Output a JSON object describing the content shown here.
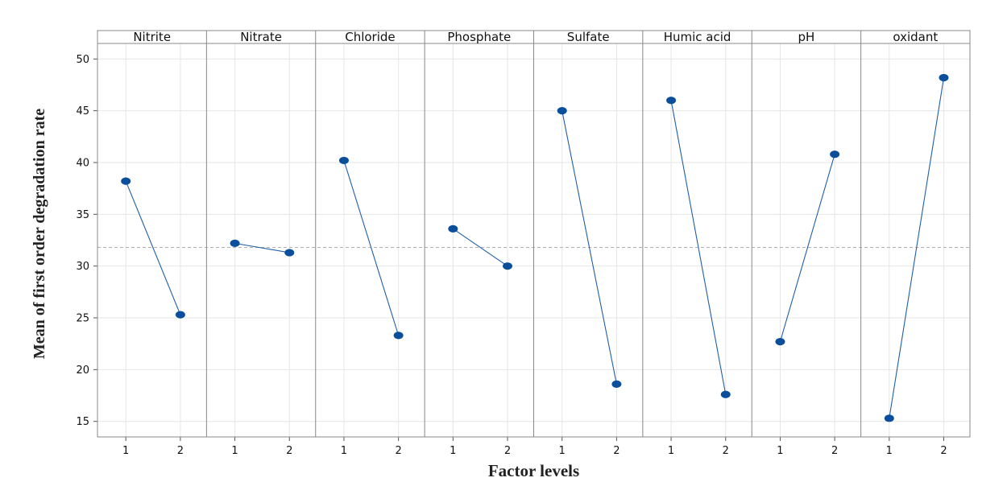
{
  "chart_data": {
    "type": "line",
    "title": "",
    "xlabel": "Factor levels",
    "ylabel": "Mean of first order degradation rate",
    "ylim": [
      13.5,
      51.5
    ],
    "y_ticks": [
      15,
      20,
      25,
      30,
      35,
      40,
      45,
      50
    ],
    "x_tick_labels": [
      "1",
      "2"
    ],
    "reference_line": 31.8,
    "grid": true,
    "series_color": "#1f5fa8",
    "marker_color": "#0b4f9c",
    "reference_color": "#b0b0b0",
    "panels": [
      {
        "name": "Nitrite",
        "x": [
          1,
          2
        ],
        "values": [
          38.2,
          25.3
        ]
      },
      {
        "name": "Nitrate",
        "x": [
          1,
          2
        ],
        "values": [
          32.2,
          31.3
        ]
      },
      {
        "name": "Chloride",
        "x": [
          1,
          2
        ],
        "values": [
          40.2,
          23.3
        ]
      },
      {
        "name": "Phosphate",
        "x": [
          1,
          2
        ],
        "values": [
          33.6,
          30.0
        ]
      },
      {
        "name": "Sulfate",
        "x": [
          1,
          2
        ],
        "values": [
          45.0,
          18.6
        ]
      },
      {
        "name": "Humic acid",
        "x": [
          1,
          2
        ],
        "values": [
          46.0,
          17.6
        ]
      },
      {
        "name": "pH",
        "x": [
          1,
          2
        ],
        "values": [
          22.7,
          40.8
        ]
      },
      {
        "name": "oxidant",
        "x": [
          1,
          2
        ],
        "values": [
          15.3,
          48.2
        ]
      }
    ]
  }
}
